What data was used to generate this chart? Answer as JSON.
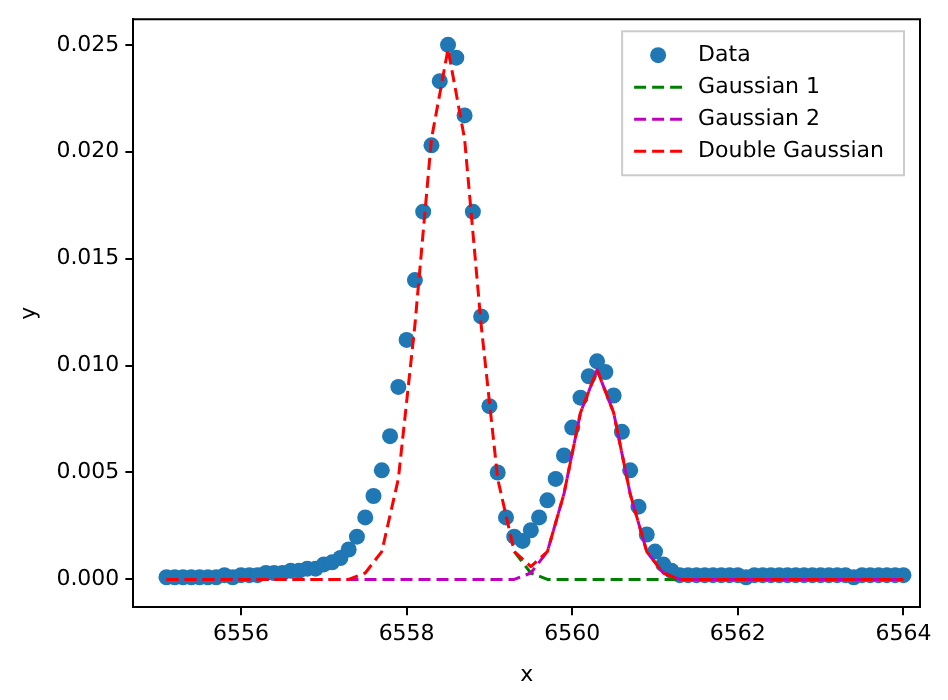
{
  "chart_data": {
    "type": "scatter",
    "xlabel": "x",
    "ylabel": "y",
    "xlim": [
      6554.7,
      6564.2
    ],
    "xticks": [
      6556,
      6558,
      6560,
      6562,
      6564
    ],
    "ylim": [
      -0.0013,
      0.0262
    ],
    "yticks": [
      {
        "value": 0,
        "label": "0.000"
      },
      {
        "value": 0.005,
        "label": "0.005"
      },
      {
        "value": 0.01,
        "label": "0.010"
      },
      {
        "value": 0.015,
        "label": "0.015"
      },
      {
        "value": 0.02,
        "label": "0.020"
      },
      {
        "value": 0.025,
        "label": "0.025"
      }
    ],
    "legend": "top right",
    "grid": false,
    "series": [
      {
        "name": "Data",
        "type": "scatter",
        "marker": "circle",
        "color": "#1f77b4",
        "x": [
          6555.1,
          6555.2,
          6555.3,
          6555.4,
          6555.5,
          6555.6,
          6555.7,
          6555.8,
          6555.9,
          6556.0,
          6556.1,
          6556.2,
          6556.3,
          6556.4,
          6556.5,
          6556.6,
          6556.7,
          6556.8,
          6556.9,
          6557.0,
          6557.1,
          6557.2,
          6557.3,
          6557.4,
          6557.5,
          6557.6,
          6557.7,
          6557.8,
          6557.9,
          6558.0,
          6558.1,
          6558.2,
          6558.3,
          6558.4,
          6558.5,
          6558.6,
          6558.7,
          6558.8,
          6558.9,
          6559.0,
          6559.1,
          6559.2,
          6559.3,
          6559.4,
          6559.5,
          6559.6,
          6559.7,
          6559.8,
          6559.9,
          6560.0,
          6560.1,
          6560.2,
          6560.3,
          6560.4,
          6560.5,
          6560.6,
          6560.7,
          6560.8,
          6560.9,
          6561.0,
          6561.1,
          6561.2,
          6561.3,
          6561.4,
          6561.5,
          6561.6,
          6561.7,
          6561.8,
          6561.9,
          6562.0,
          6562.1,
          6562.2,
          6562.3,
          6562.4,
          6562.5,
          6562.6,
          6562.7,
          6562.8,
          6562.9,
          6563.0,
          6563.1,
          6563.2,
          6563.3,
          6563.4,
          6563.5,
          6563.6,
          6563.7,
          6563.8,
          6563.9,
          6564.0
        ],
        "values": [
          0.0001,
          0.0001,
          0.0001,
          0.0001,
          0.0001,
          0.0001,
          0.0001,
          0.0002,
          0.0001,
          0.0002,
          0.0002,
          0.0002,
          0.0003,
          0.0003,
          0.0003,
          0.0004,
          0.0004,
          0.0005,
          0.0005,
          0.0007,
          0.0008,
          0.001,
          0.0014,
          0.002,
          0.0029,
          0.0039,
          0.0051,
          0.0067,
          0.009,
          0.0112,
          0.014,
          0.0172,
          0.0203,
          0.0233,
          0.025,
          0.0244,
          0.0217,
          0.0172,
          0.0123,
          0.0081,
          0.005,
          0.0029,
          0.002,
          0.0018,
          0.0023,
          0.0029,
          0.0037,
          0.0047,
          0.0058,
          0.0071,
          0.0085,
          0.0095,
          0.0102,
          0.0097,
          0.0086,
          0.0069,
          0.0051,
          0.0034,
          0.0021,
          0.0013,
          0.0007,
          0.0004,
          0.0002,
          0.0002,
          0.0002,
          0.0002,
          0.0002,
          0.0002,
          0.0002,
          0.0002,
          0.0001,
          0.0002,
          0.0002,
          0.0002,
          0.0002,
          0.0002,
          0.0002,
          0.0002,
          0.0002,
          0.0002,
          0.0002,
          0.0002,
          0.0002,
          0.0001,
          0.0002,
          0.0002,
          0.0002,
          0.0002,
          0.0002,
          0.0002
        ]
      },
      {
        "name": "Gaussian 1",
        "type": "line",
        "line_style": "dashed",
        "marker": "none",
        "color": "#008000",
        "x": [
          6559.3,
          6559.5,
          6559.7,
          6559.9,
          6560.1,
          6560.3,
          6560.5,
          6560.7,
          6560.9,
          6561.1,
          6561.3
        ],
        "values": [
          0.0013,
          0.0003,
          0,
          0,
          0,
          0,
          0,
          0,
          0,
          0,
          0
        ]
      },
      {
        "name": "Gaussian 2",
        "type": "line",
        "line_style": "dashed",
        "marker": "none",
        "color": "#bf00bf",
        "x": [
          6555.1,
          6557.0,
          6557.3,
          6557.5,
          6557.7,
          6557.9,
          6558.1,
          6558.3,
          6558.5,
          6558.7,
          6558.9,
          6559.1,
          6559.3,
          6559.5,
          6559.7,
          6559.9,
          6560.1,
          6560.3,
          6560.5,
          6560.7,
          6560.9,
          6561.1,
          6561.3,
          6561.5,
          6564.0
        ],
        "values": [
          0,
          0,
          0,
          0,
          0,
          0,
          0,
          0,
          0,
          0,
          0,
          0,
          0,
          0.0003,
          0.0013,
          0.004,
          0.0078,
          0.0098,
          0.0078,
          0.004,
          0.0013,
          0.0003,
          0,
          0,
          0
        ]
      },
      {
        "name": "Double Gaussian",
        "type": "line",
        "line_style": "dashed",
        "marker": "none",
        "color": "#ff0000",
        "x": [
          6555.1,
          6557.0,
          6557.3,
          6557.5,
          6557.7,
          6557.9,
          6558.1,
          6558.3,
          6558.5,
          6558.7,
          6558.9,
          6559.1,
          6559.3,
          6559.5,
          6559.7,
          6559.9,
          6560.1,
          6560.3,
          6560.5,
          6560.7,
          6560.9,
          6561.1,
          6561.3,
          6561.5,
          6564.0
        ],
        "values": [
          0,
          0,
          0,
          0.0003,
          0.0013,
          0.0047,
          0.0119,
          0.0206,
          0.0248,
          0.0206,
          0.0119,
          0.0047,
          0.0013,
          0.0006,
          0.0013,
          0.004,
          0.0078,
          0.0098,
          0.0078,
          0.004,
          0.0013,
          0.0003,
          0,
          0,
          0
        ]
      }
    ]
  }
}
